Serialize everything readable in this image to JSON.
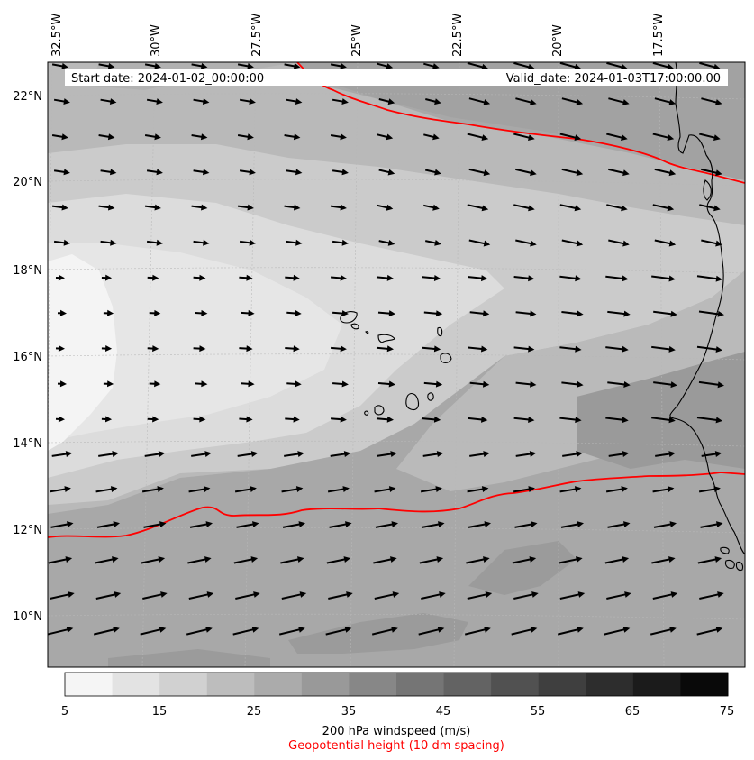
{
  "header": {
    "start_date": "Start date: 2024-01-02_00:00:00",
    "valid_date": "Valid_date: 2024-01-03T17:00:00.00"
  },
  "longitude_labels": [
    "32.5°W",
    "30°W",
    "27.5°W",
    "25°W",
    "22.5°W",
    "20°W",
    "17.5°W"
  ],
  "latitude_labels": [
    "22°N",
    "20°N",
    "18°N",
    "16°N",
    "14°N",
    "12°N",
    "10°N"
  ],
  "colorbar": {
    "ticks": [
      "5",
      "15",
      "25",
      "35",
      "45",
      "55",
      "65",
      "75"
    ],
    "label": "200 hPa windspeed (m/s)",
    "sublabel": "Geopotential height (10 dm spacing)",
    "sublabel_color": "#ff0000",
    "levels": [
      5,
      10,
      15,
      20,
      25,
      30,
      35,
      40,
      45,
      50,
      55,
      60,
      65,
      70,
      75
    ],
    "colors": [
      "#f5f5f5",
      "#e3e3e3",
      "#d1d1d1",
      "#bdbdbd",
      "#ababab",
      "#999999",
      "#878787",
      "#757575",
      "#636363",
      "#515151",
      "#3f3f3f",
      "#2d2d2d",
      "#1b1b1b",
      "#090909"
    ]
  },
  "contour_color": "#ff0000",
  "coastline_color": "#000000"
}
